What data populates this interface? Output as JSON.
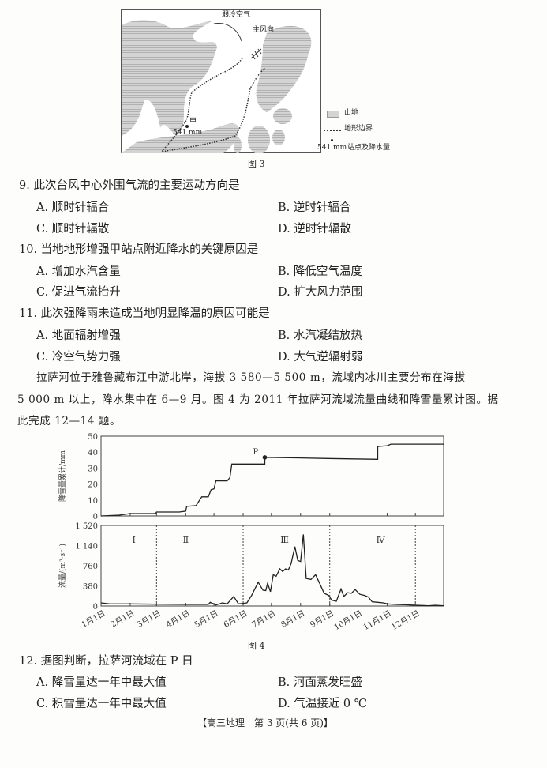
{
  "figure3": {
    "caption": "图 3",
    "labels": {
      "cold_air": "弱冷空气",
      "wind_dir": "主风向",
      "station": "甲",
      "station_precip": "541 mm"
    },
    "legend": [
      {
        "label": "山地"
      },
      {
        "label": "地形边界"
      },
      {
        "value": "541 mm",
        "label": "站点及降水量"
      }
    ]
  },
  "questions": [
    {
      "stem": "9. 此次台风中心外围气流的主要运动方向是",
      "options": [
        "A. 顺时针辐合",
        "B. 逆时针辐合",
        "C. 顺时针辐散",
        "D. 逆时针辐散"
      ]
    },
    {
      "stem": "10. 当地地形增强甲站点附近降水的关键原因是",
      "options": [
        "A. 增加水汽含量",
        "B. 降低空气温度",
        "C. 促进气流抬升",
        "D. 扩大风力范围"
      ]
    },
    {
      "stem": "11. 此次强降雨未造成当地明显降温的原因可能是",
      "options": [
        "A. 地面辐射增强",
        "B. 水汽凝结放热",
        "C. 冷空气势力强",
        "D. 大气逆辐射弱"
      ]
    }
  ],
  "passage": [
    "拉萨河位于雅鲁藏布江中游北岸，海拔 3 580—5 500 m，流域内冰川主要分布在海拔",
    "5 000 m 以上，降水集中在 6—9 月。图 4 为 2011 年拉萨河流域流量曲线和降雪量累计图。据",
    "此完成 12—14 题。"
  ],
  "chart_data": [
    {
      "type": "line",
      "ylabel": "降雪量累计/mm",
      "ylim": [
        0,
        50
      ],
      "yticks": [
        "0",
        "10",
        "20",
        "30",
        "40",
        "50"
      ],
      "annotation": "P",
      "point_P": {
        "x": "06-24",
        "y": 36.7
      },
      "series": [
        {
          "x": [
            "01-01",
            "01-20",
            "02-01",
            "02-28",
            "03-01",
            "03-25",
            "04-01",
            "04-02",
            "04-12",
            "04-18",
            "04-25",
            "04-28",
            "05-01",
            "05-03",
            "05-15",
            "05-18",
            "05-20",
            "06-24",
            "06-24",
            "07-20",
            "08-30",
            "10-22",
            "10-22",
            "11-01",
            "11-05",
            "12-31"
          ],
          "y": [
            0,
            0.5,
            1.5,
            1.5,
            2.5,
            2.5,
            3,
            6,
            6.5,
            12,
            12,
            16.5,
            17,
            22,
            22,
            24,
            32.5,
            32.5,
            36.7,
            36.5,
            36,
            35.5,
            43.5,
            44,
            45,
            45
          ]
        }
      ],
      "grid": false
    },
    {
      "type": "line",
      "ylabel": "流量/(m³·s⁻¹)",
      "ylim": [
        0,
        1520
      ],
      "yticks": [
        "0",
        "380",
        "760",
        "1 140",
        "1 520"
      ],
      "xticks": [
        "1月1日",
        "2月1日",
        "3月1日",
        "4月1日",
        "5月1日",
        "6月1日",
        "7月1日",
        "8月1日",
        "9月1日",
        "10月1日",
        "11月1日",
        "12月1日"
      ],
      "xtick_dates": [
        "01-01",
        "02-01",
        "03-01",
        "04-01",
        "05-01",
        "06-01",
        "07-01",
        "08-01",
        "09-01",
        "10-01",
        "11-01",
        "12-01"
      ],
      "dividers": [
        "03-01",
        "06-01",
        "09-01",
        "12-01"
      ],
      "periods": [
        {
          "label": "Ⅰ",
          "x": "02-05"
        },
        {
          "label": "Ⅱ",
          "x": "04-01"
        },
        {
          "label": "Ⅲ",
          "x": "07-15"
        },
        {
          "label": "Ⅳ",
          "x": "10-25"
        }
      ],
      "series": [
        {
          "x": [
            "01-01",
            "01-10",
            "02-01",
            "03-01",
            "04-01",
            "04-25",
            "04-27",
            "05-03",
            "05-10",
            "05-15",
            "05-22",
            "05-27",
            "06-01",
            "06-05",
            "06-10",
            "06-17",
            "06-22",
            "06-25",
            "06-27",
            "06-30",
            "07-03",
            "07-06",
            "07-10",
            "07-13",
            "07-16",
            "07-19",
            "07-22",
            "07-26",
            "07-29",
            "08-01",
            "08-04",
            "08-07",
            "08-12",
            "08-17",
            "08-22",
            "08-26",
            "08-31",
            "09-03",
            "09-08",
            "09-13",
            "09-16",
            "09-20",
            "09-24",
            "09-28",
            "10-03",
            "10-08",
            "10-12",
            "10-16",
            "10-22",
            "10-28",
            "11-01",
            "11-10",
            "11-20",
            "12-01",
            "12-08",
            "12-15",
            "12-22",
            "12-31"
          ],
          "y": [
            60,
            40,
            40,
            35,
            30,
            30,
            70,
            20,
            60,
            40,
            180,
            40,
            50,
            60,
            200,
            450,
            300,
            290,
            430,
            270,
            590,
            560,
            700,
            650,
            700,
            680,
            800,
            1120,
            860,
            840,
            1350,
            520,
            500,
            590,
            400,
            240,
            200,
            110,
            90,
            320,
            180,
            250,
            240,
            310,
            220,
            200,
            170,
            80,
            70,
            60,
            40,
            30,
            25,
            15,
            10,
            5,
            15,
            5
          ]
        }
      ],
      "grid": false
    }
  ],
  "figure4": {
    "caption": "图 4"
  },
  "question12": {
    "stem": "12. 据图判断，拉萨河流域在 P 日",
    "options": [
      "A. 降雪量达一年中最大值",
      "B. 河面蒸发旺盛",
      "C. 积雪量达一年中最大值",
      "D. 气温接近 0 ℃"
    ]
  },
  "footer": "【高三地理　第 3 页(共 6 页)】"
}
